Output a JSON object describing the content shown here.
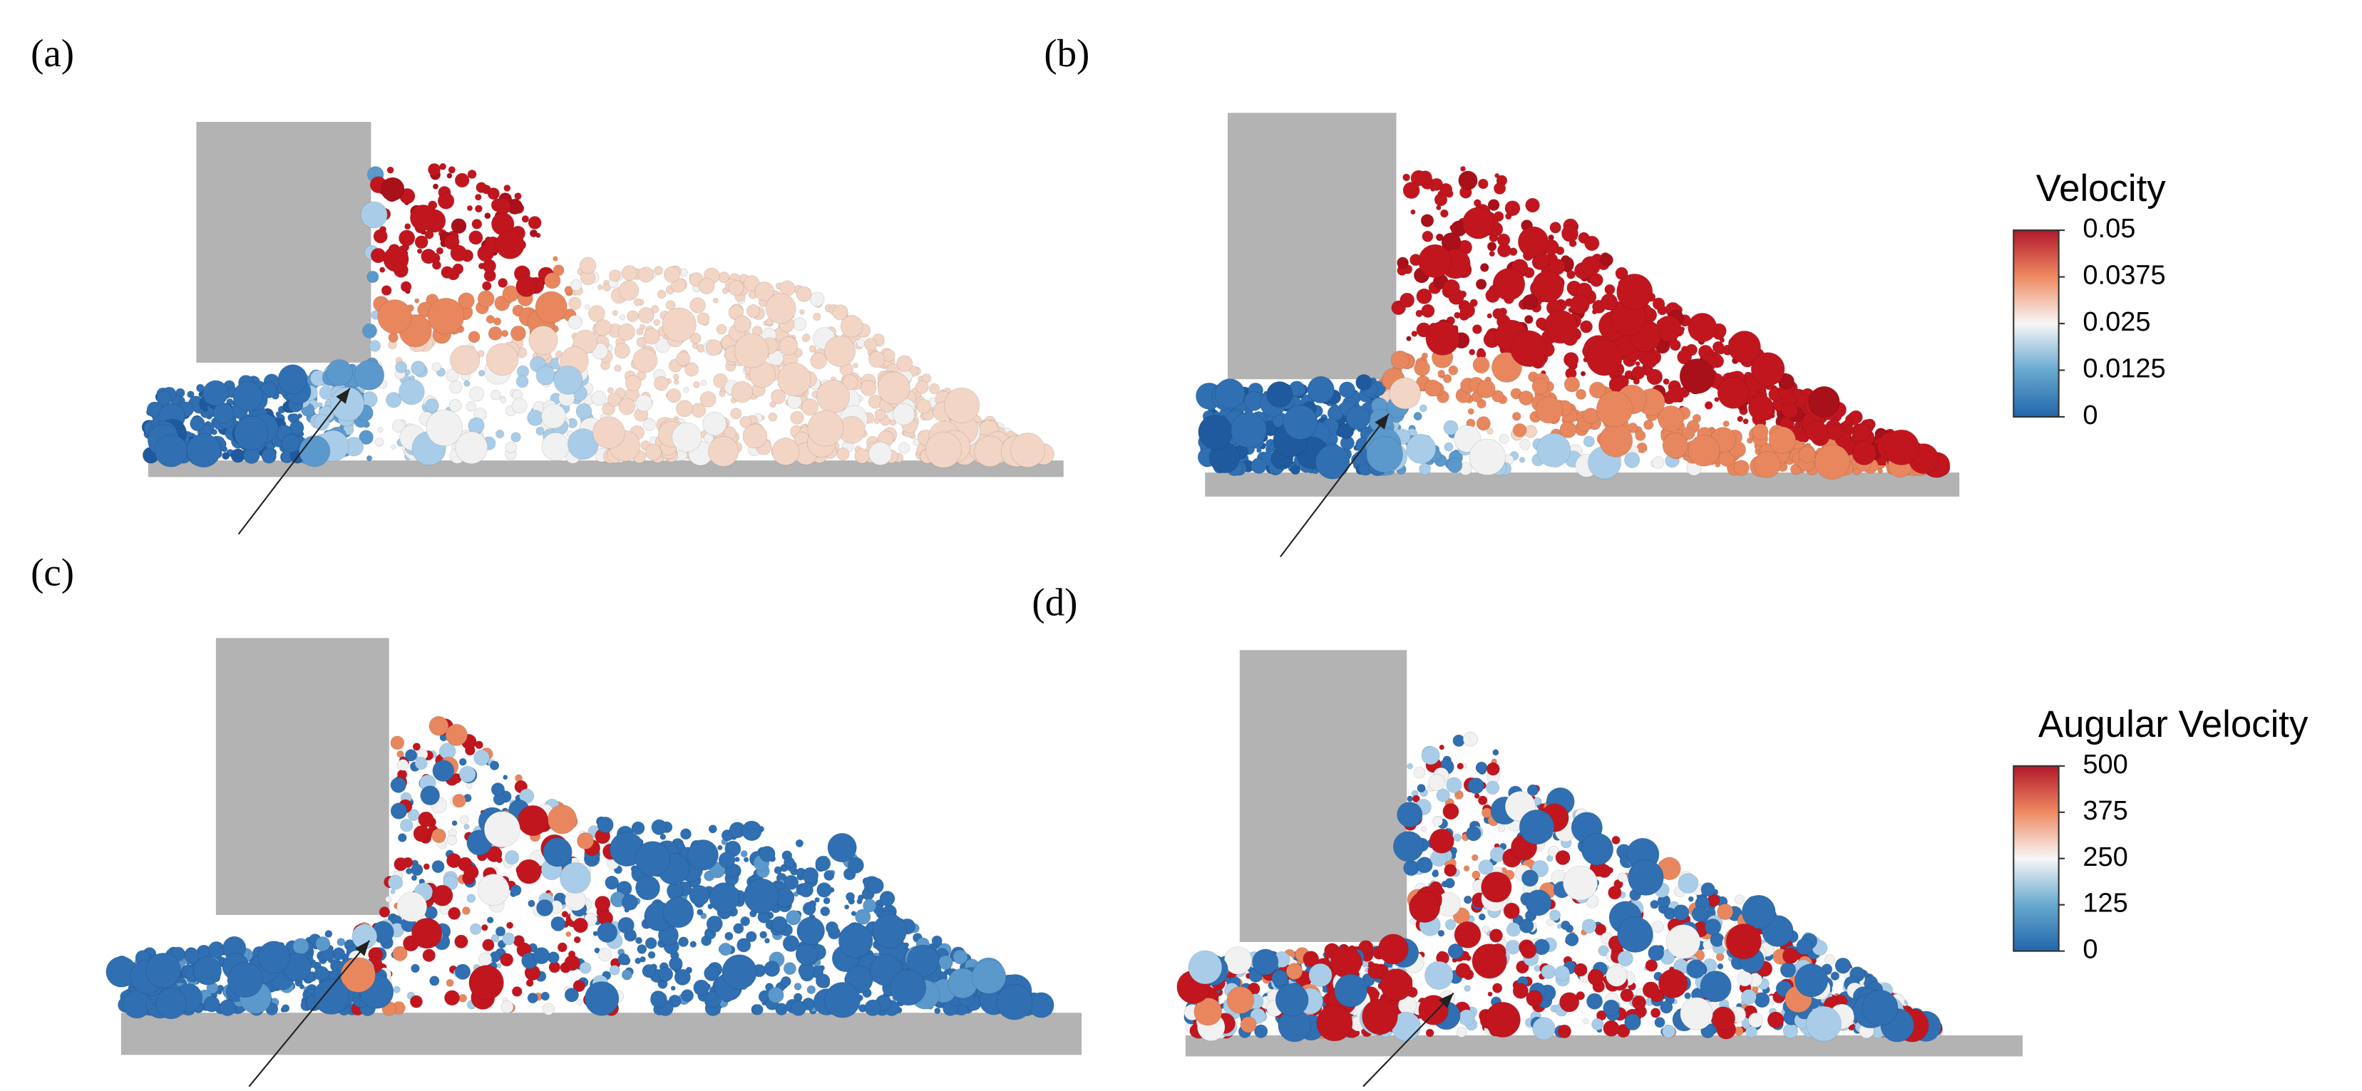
{
  "panels": [
    {
      "label": "(a)"
    },
    {
      "label": "(b)"
    },
    {
      "label": "(c)"
    },
    {
      "label": "(d)"
    }
  ],
  "colorbars": [
    {
      "title": "Velocity",
      "ticks": [
        0.05,
        0.0375,
        0.025,
        0.0125,
        0
      ]
    },
    {
      "title": "Augular Velocity",
      "ticks": [
        500,
        375,
        250,
        125,
        0
      ]
    }
  ]
}
